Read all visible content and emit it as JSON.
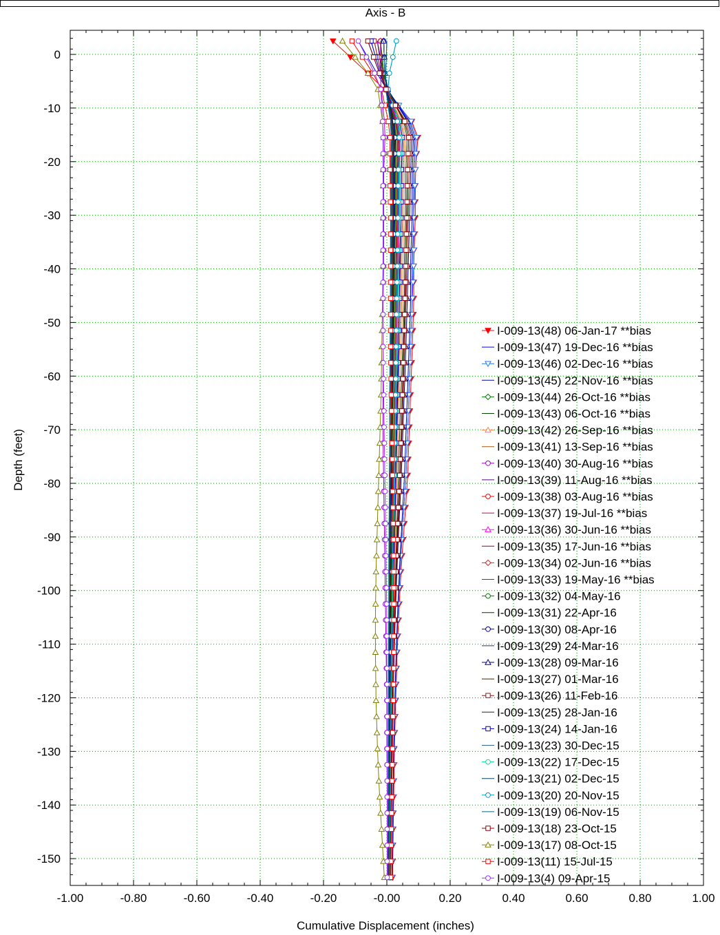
{
  "chart_data": {
    "type": "line",
    "title": "Axis - B",
    "xlabel": "Cumulative Displacement (inches)",
    "ylabel": "Depth (feet)",
    "xlim": [
      -1.0,
      1.0
    ],
    "ylim": [
      -155,
      4.5
    ],
    "x_ticks": [
      "-1.00",
      "-0.80",
      "-0.60",
      "-0.40",
      "-0.20",
      "-0.00",
      "0.20",
      "0.40",
      "0.60",
      "0.80",
      "1.00"
    ],
    "y_ticks": [
      "0",
      "-10",
      "-20",
      "-30",
      "-40",
      "-50",
      "-60",
      "-70",
      "-80",
      "-90",
      "-100",
      "-110",
      "-120",
      "-130",
      "-140",
      "-150"
    ],
    "grid": true,
    "legend_position": "bottom-right",
    "depths": [
      2.5,
      -0.5,
      -3.5,
      -6.5,
      -9.5,
      -12.5,
      -15.5,
      -18.5,
      -21.5,
      -24.5,
      -27.5,
      -30.5,
      -33.5,
      -36.5,
      -39.5,
      -42.5,
      -45.5,
      -48.5,
      -51.5,
      -54.5,
      -57.5,
      -60.5,
      -63.5,
      -66.5,
      -69.5,
      -72.5,
      -75.5,
      -78.5,
      -81.5,
      -84.5,
      -87.5,
      -90.5,
      -93.5,
      -96.5,
      -99.5,
      -102.5,
      -105.5,
      -108.5,
      -111.5,
      -114.5,
      -117.5,
      -120.5,
      -123.5,
      -126.5,
      -129.5,
      -132.5,
      -135.5,
      -138.5,
      -141.5,
      -144.5,
      -147.5,
      -150.5,
      -153.5
    ],
    "series": [
      {
        "name": "I-009-13(48) 06-Jan-17 **bias",
        "color": "#ff0000",
        "marker": "tri-down-filled",
        "profile": [
          -0.17,
          -0.02,
          0.1,
          0.09,
          0.09,
          0.085,
          0.085,
          0.08,
          0.075,
          0.07,
          0.065,
          0.055,
          0.045,
          0.038,
          0.032,
          0.028,
          0.024,
          0.022,
          0.02,
          0.018
        ]
      },
      {
        "name": "I-009-13(47) 19-Dec-16 **bias",
        "color": "#0000ff",
        "marker": "none",
        "profile": [
          -0.09,
          -0.01,
          0.09,
          0.085,
          0.085,
          0.08,
          0.08,
          0.075,
          0.07,
          0.065,
          0.06,
          0.05,
          0.042,
          0.035,
          0.03,
          0.026,
          0.022,
          0.02,
          0.018,
          0.016
        ]
      },
      {
        "name": "I-009-13(46) 02-Dec-16 **bias",
        "color": "#2277ff",
        "marker": "tri-down",
        "profile": [
          -0.05,
          -0.01,
          0.095,
          0.09,
          0.085,
          0.085,
          0.08,
          0.075,
          0.07,
          0.065,
          0.06,
          0.05,
          0.042,
          0.035,
          0.03,
          0.026,
          0.022,
          0.02,
          0.018,
          0.016
        ]
      },
      {
        "name": "I-009-13(45) 22-Nov-16 **bias",
        "color": "#0000aa",
        "marker": "none",
        "profile": [
          -0.06,
          -0.01,
          0.085,
          0.08,
          0.08,
          0.075,
          0.075,
          0.07,
          0.065,
          0.06,
          0.055,
          0.047,
          0.04,
          0.034,
          0.029,
          0.025,
          0.022,
          0.02,
          0.018,
          0.016
        ]
      },
      {
        "name": "I-009-13(44) 26-Oct-16 **bias",
        "color": "#008000",
        "marker": "diamond",
        "profile": [
          -0.02,
          -0.005,
          0.07,
          0.065,
          0.065,
          0.06,
          0.06,
          0.055,
          0.05,
          0.045,
          0.04,
          0.035,
          0.03,
          0.025,
          0.022,
          0.02,
          0.018,
          0.016,
          0.014,
          0.012
        ]
      },
      {
        "name": "I-009-13(43) 06-Oct-16 **bias",
        "color": "#004400",
        "marker": "none",
        "profile": [
          -0.03,
          -0.005,
          0.065,
          0.06,
          0.06,
          0.055,
          0.055,
          0.05,
          0.045,
          0.04,
          0.036,
          0.032,
          0.028,
          0.024,
          0.021,
          0.019,
          0.017,
          0.015,
          0.013,
          0.011
        ]
      },
      {
        "name": "I-009-13(42) 26-Sep-16 **bias",
        "color": "#ff7f50",
        "marker": "triangle",
        "profile": [
          -0.04,
          -0.01,
          0.06,
          0.055,
          0.055,
          0.05,
          0.05,
          0.045,
          0.04,
          0.036,
          0.032,
          0.028,
          0.025,
          0.022,
          0.02,
          0.018,
          0.016,
          0.014,
          0.012,
          0.01
        ]
      },
      {
        "name": "I-009-13(41) 13-Sep-16 **bias",
        "color": "#aa5500",
        "marker": "none",
        "profile": [
          -0.03,
          -0.01,
          0.055,
          0.05,
          0.05,
          0.045,
          0.045,
          0.04,
          0.036,
          0.032,
          0.029,
          0.026,
          0.023,
          0.02,
          0.018,
          0.016,
          0.014,
          0.012,
          0.01,
          0.009
        ]
      },
      {
        "name": "I-009-13(40) 30-Aug-16 **bias",
        "color": "#9900cc",
        "marker": "circle",
        "profile": [
          -0.02,
          -0.02,
          -0.005,
          -0.01,
          -0.01,
          -0.01,
          -0.012,
          -0.012,
          -0.012,
          -0.012,
          -0.01,
          -0.008,
          -0.006,
          -0.004,
          -0.002,
          0.0,
          0.0,
          0.001,
          0.001,
          0.001
        ]
      },
      {
        "name": "I-009-13(39) 11-Aug-16 **bias",
        "color": "#550088",
        "marker": "none",
        "profile": [
          -0.03,
          -0.01,
          0.05,
          0.045,
          0.045,
          0.04,
          0.04,
          0.036,
          0.032,
          0.029,
          0.026,
          0.023,
          0.021,
          0.019,
          0.017,
          0.015,
          0.013,
          0.011,
          0.01,
          0.009
        ]
      },
      {
        "name": "I-009-13(38) 03-Aug-16 **bias",
        "color": "#ee0000",
        "marker": "circle",
        "profile": [
          -0.02,
          -0.01,
          0.045,
          0.04,
          0.04,
          0.038,
          0.036,
          0.033,
          0.03,
          0.027,
          0.025,
          0.023,
          0.021,
          0.019,
          0.017,
          0.015,
          0.013,
          0.011,
          0.01,
          0.009
        ]
      },
      {
        "name": "I-009-13(37) 19-Jul-16 **bias",
        "color": "#cc0066",
        "marker": "none",
        "profile": [
          -0.02,
          -0.01,
          0.042,
          0.038,
          0.038,
          0.035,
          0.034,
          0.031,
          0.028,
          0.026,
          0.024,
          0.022,
          0.02,
          0.018,
          0.016,
          0.014,
          0.012,
          0.011,
          0.01,
          0.009
        ]
      },
      {
        "name": "I-009-13(36) 30-Jun-16 **bias",
        "color": "#ff00ff",
        "marker": "triangle",
        "profile": [
          -0.02,
          -0.01,
          0.04,
          0.036,
          0.036,
          0.033,
          0.032,
          0.03,
          0.027,
          0.025,
          0.023,
          0.021,
          0.019,
          0.017,
          0.015,
          0.013,
          0.011,
          0.01,
          0.009,
          0.008
        ]
      },
      {
        "name": "I-009-13(35) 17-Jun-16 **bias",
        "color": "#880044",
        "marker": "none",
        "profile": [
          -0.02,
          -0.01,
          0.038,
          0.034,
          0.034,
          0.031,
          0.03,
          0.028,
          0.026,
          0.024,
          0.022,
          0.02,
          0.018,
          0.016,
          0.014,
          0.012,
          0.011,
          0.01,
          0.009,
          0.008
        ]
      },
      {
        "name": "I-009-13(34) 02-Jun-16 **bias",
        "color": "#dd2222",
        "marker": "diamond",
        "profile": [
          -0.02,
          -0.01,
          0.036,
          0.032,
          0.032,
          0.03,
          0.029,
          0.027,
          0.025,
          0.023,
          0.021,
          0.019,
          0.017,
          0.015,
          0.014,
          0.012,
          0.011,
          0.01,
          0.009,
          0.008
        ]
      },
      {
        "name": "I-009-13(33) 19-May-16 **bias",
        "color": "#664400",
        "marker": "none",
        "profile": [
          -0.02,
          -0.01,
          0.034,
          0.03,
          0.03,
          0.028,
          0.027,
          0.025,
          0.023,
          0.021,
          0.019,
          0.018,
          0.016,
          0.015,
          0.013,
          0.012,
          0.011,
          0.01,
          0.009,
          0.008
        ]
      },
      {
        "name": "I-009-13(32) 04-May-16",
        "color": "#007700",
        "marker": "circle",
        "profile": [
          -0.01,
          -0.005,
          0.03,
          0.027,
          0.027,
          0.025,
          0.024,
          0.022,
          0.02,
          0.018,
          0.017,
          0.015,
          0.014,
          0.013,
          0.012,
          0.011,
          0.01,
          0.009,
          0.008,
          0.007
        ]
      },
      {
        "name": "I-009-13(31) 22-Apr-16",
        "color": "#003300",
        "marker": "none",
        "profile": [
          -0.01,
          -0.005,
          0.028,
          0.025,
          0.025,
          0.023,
          0.022,
          0.02,
          0.018,
          0.017,
          0.016,
          0.014,
          0.013,
          0.012,
          0.011,
          0.01,
          0.009,
          0.008,
          0.007,
          0.006
        ]
      },
      {
        "name": "I-009-13(30) 08-Apr-16",
        "color": "#000099",
        "marker": "circle",
        "profile": [
          -0.01,
          -0.005,
          0.026,
          0.023,
          0.023,
          0.021,
          0.02,
          0.019,
          0.017,
          0.016,
          0.015,
          0.013,
          0.012,
          0.011,
          0.01,
          0.009,
          0.008,
          0.007,
          0.006,
          0.006
        ]
      },
      {
        "name": "I-009-13(29) 24-Mar-16",
        "color": "#333366",
        "marker": "none",
        "profile": [
          -0.01,
          -0.005,
          0.024,
          0.021,
          0.021,
          0.02,
          0.019,
          0.018,
          0.016,
          0.015,
          0.014,
          0.012,
          0.011,
          0.01,
          0.009,
          0.008,
          0.007,
          0.006,
          0.006,
          0.005
        ]
      },
      {
        "name": "I-009-13(28) 09-Mar-16",
        "color": "#000088",
        "marker": "triangle",
        "profile": [
          -0.01,
          -0.005,
          0.08,
          0.075,
          0.072,
          0.068,
          0.064,
          0.06,
          0.055,
          0.05,
          0.045,
          0.038,
          0.032,
          0.027,
          0.023,
          0.02,
          0.017,
          0.015,
          0.013,
          0.011
        ]
      },
      {
        "name": "I-009-13(27) 01-Mar-16",
        "color": "#442200",
        "marker": "none",
        "profile": [
          -0.01,
          -0.005,
          0.022,
          0.02,
          0.02,
          0.019,
          0.018,
          0.017,
          0.015,
          0.014,
          0.013,
          0.011,
          0.01,
          0.009,
          0.008,
          0.007,
          0.006,
          0.006,
          0.005,
          0.005
        ]
      },
      {
        "name": "I-009-13(26) 11-Feb-16",
        "color": "#8b1a1a",
        "marker": "square",
        "profile": [
          -0.04,
          -0.01,
          0.075,
          0.07,
          0.068,
          0.064,
          0.06,
          0.056,
          0.052,
          0.047,
          0.042,
          0.036,
          0.03,
          0.026,
          0.022,
          0.019,
          0.016,
          0.014,
          0.012,
          0.01
        ]
      },
      {
        "name": "I-009-13(25) 28-Jan-16",
        "color": "#222222",
        "marker": "none",
        "profile": [
          -0.01,
          -0.005,
          0.02,
          0.018,
          0.018,
          0.017,
          0.016,
          0.015,
          0.014,
          0.013,
          0.012,
          0.01,
          0.009,
          0.008,
          0.007,
          0.006,
          0.006,
          0.005,
          0.005,
          0.004
        ]
      },
      {
        "name": "I-009-13(24) 14-Jan-16",
        "color": "#0000cc",
        "marker": "square",
        "profile": [
          -0.05,
          -0.01,
          0.05,
          0.046,
          0.045,
          0.042,
          0.04,
          0.037,
          0.034,
          0.031,
          0.028,
          0.025,
          0.022,
          0.02,
          0.017,
          0.015,
          0.013,
          0.011,
          0.01,
          0.009
        ]
      },
      {
        "name": "I-009-13(23) 30-Dec-15",
        "color": "#336699",
        "marker": "none",
        "profile": [
          -0.01,
          -0.005,
          0.018,
          0.016,
          0.016,
          0.015,
          0.014,
          0.013,
          0.012,
          0.011,
          0.01,
          0.009,
          0.008,
          0.007,
          0.006,
          0.006,
          0.005,
          0.005,
          0.004,
          0.004
        ]
      },
      {
        "name": "I-009-13(22) 17-Dec-15",
        "color": "#00e0a0",
        "marker": "circle",
        "profile": [
          0.03,
          0.0,
          0.045,
          0.04,
          0.04,
          0.037,
          0.035,
          0.032,
          0.03,
          0.027,
          0.025,
          0.022,
          0.02,
          0.018,
          0.016,
          0.014,
          0.012,
          0.011,
          0.01,
          0.009
        ]
      },
      {
        "name": "I-009-13(21) 02-Dec-15",
        "color": "#004466",
        "marker": "none",
        "profile": [
          0.0,
          -0.005,
          0.016,
          0.014,
          0.014,
          0.013,
          0.012,
          0.011,
          0.01,
          0.009,
          0.008,
          0.008,
          0.007,
          0.006,
          0.006,
          0.005,
          0.005,
          0.004,
          0.004,
          0.004
        ]
      },
      {
        "name": "I-009-13(20) 20-Nov-15",
        "color": "#0099cc",
        "marker": "circle",
        "profile": [
          0.03,
          0.0,
          0.04,
          0.036,
          0.035,
          0.033,
          0.031,
          0.029,
          0.027,
          0.025,
          0.023,
          0.02,
          0.018,
          0.016,
          0.014,
          0.012,
          0.011,
          0.01,
          0.009,
          0.008
        ]
      },
      {
        "name": "I-009-13(19) 06-Nov-15",
        "color": "#006688",
        "marker": "none",
        "profile": [
          0.0,
          -0.005,
          0.014,
          0.012,
          0.012,
          0.011,
          0.011,
          0.01,
          0.009,
          0.009,
          0.008,
          0.007,
          0.006,
          0.006,
          0.005,
          0.005,
          0.004,
          0.004,
          0.004,
          0.003
        ]
      },
      {
        "name": "I-009-13(18) 23-Oct-15",
        "color": "#8b0000",
        "marker": "square",
        "profile": [
          -0.06,
          -0.01,
          0.07,
          0.065,
          0.063,
          0.06,
          0.057,
          0.053,
          0.049,
          0.045,
          0.04,
          0.034,
          0.029,
          0.025,
          0.021,
          0.018,
          0.016,
          0.014,
          0.012,
          0.01
        ]
      },
      {
        "name": "I-009-13(17) 08-Oct-15",
        "color": "#808000",
        "marker": "triangle",
        "profile": [
          -0.14,
          -0.03,
          -0.01,
          -0.012,
          -0.012,
          -0.012,
          -0.014,
          -0.016,
          -0.018,
          -0.022,
          -0.026,
          -0.03,
          -0.034,
          -0.036,
          -0.036,
          -0.034,
          -0.03,
          -0.024,
          -0.016,
          -0.008
        ]
      },
      {
        "name": "I-009-13(11) 15-Jul-15",
        "color": "#ff0000",
        "marker": "square",
        "profile": [
          -0.11,
          -0.02,
          0.01,
          0.01,
          0.012,
          0.012,
          0.012,
          0.012,
          0.014,
          0.016,
          0.018,
          0.02,
          0.022,
          0.022,
          0.022,
          0.02,
          0.018,
          0.016,
          0.014,
          0.012
        ]
      },
      {
        "name": "I-009-13(4) 09-Apr-15",
        "color": "#9933ff",
        "marker": "circle",
        "profile": [
          -0.09,
          -0.02,
          -0.012,
          -0.012,
          -0.012,
          -0.012,
          -0.012,
          -0.012,
          -0.01,
          -0.008,
          -0.006,
          -0.004,
          -0.002,
          0.0,
          0.0,
          0.001,
          0.001,
          0.001,
          0.001,
          0.001
        ]
      }
    ]
  }
}
